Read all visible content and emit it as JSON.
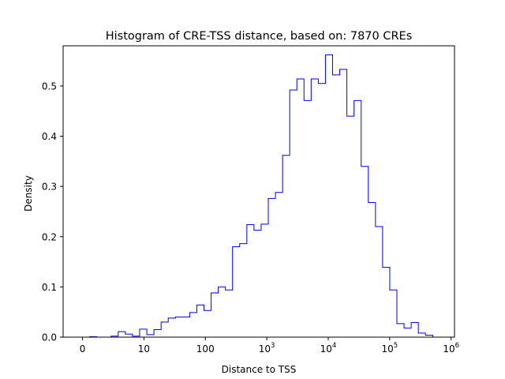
{
  "chart_data": {
    "type": "histogram",
    "title": "Histogram of CRE-TSS distance, based on: 7870 CREs",
    "xlabel": "Distance to TSS",
    "ylabel": "Density",
    "x_scale": "symlog",
    "x_ticks": [
      {
        "value": 0,
        "label": "0"
      },
      {
        "value": 10,
        "label": "10"
      },
      {
        "value": 100,
        "label": "100"
      },
      {
        "value": 1000,
        "label": "10",
        "exp": "3"
      },
      {
        "value": 10000,
        "label": "10",
        "exp": "4"
      },
      {
        "value": 100000,
        "label": "10",
        "exp": "5"
      },
      {
        "value": 1000000,
        "label": "10",
        "exp": "6"
      }
    ],
    "y_ticks": [
      0.0,
      0.1,
      0.2,
      0.3,
      0.4,
      0.5
    ],
    "ylim": [
      0,
      0.58
    ],
    "series": [
      {
        "color": "#0000ff",
        "values": [
          0,
          0.001,
          0,
          0,
          0.002,
          0.011,
          0.006,
          0.002,
          0.016,
          0.005,
          0.015,
          0.03,
          0.038,
          0.04,
          0.04,
          0.049,
          0.064,
          0.053,
          0.088,
          0.1,
          0.094,
          0.18,
          0.186,
          0.224,
          0.213,
          0.225,
          0.276,
          0.288,
          0.362,
          0.492,
          0.514,
          0.471,
          0.514,
          0.505,
          0.562,
          0.522,
          0.533,
          0.44,
          0.471,
          0.34,
          0.268,
          0.22,
          0.139,
          0.094,
          0.027,
          0.018,
          0.029,
          0.008,
          0.004
        ]
      }
    ]
  }
}
